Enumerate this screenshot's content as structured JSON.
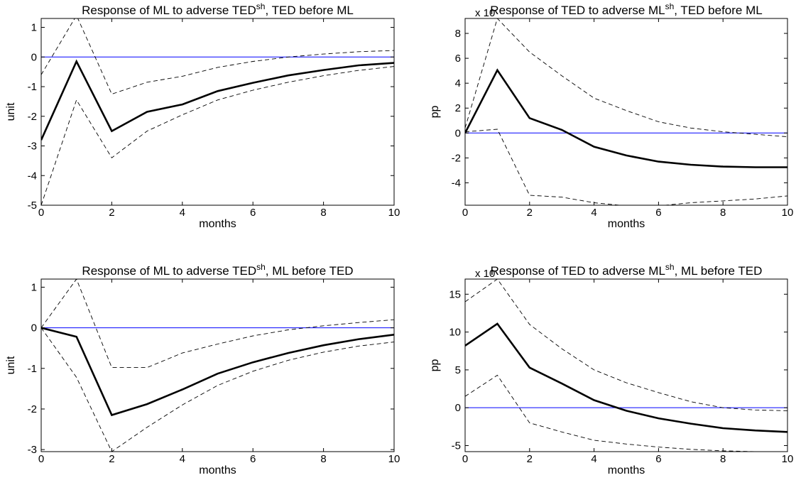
{
  "chart_data": [
    {
      "type": "line",
      "title": "Response of ML to adverse TED",
      "title_sup": "sh",
      "title_suffix": ", TED before ML",
      "xlabel": "months",
      "ylabel": "unit",
      "multiplier_label": "",
      "xlim": [
        0,
        10
      ],
      "ylim": [
        -5,
        1.3
      ],
      "xticks": [
        "0",
        "2",
        "4",
        "6",
        "8",
        "10"
      ],
      "yticks": [
        "-5",
        "-4",
        "-3",
        "-2",
        "-1",
        "0",
        "1"
      ],
      "x": [
        0,
        1,
        2,
        3,
        4,
        5,
        6,
        7,
        8,
        9,
        10
      ],
      "zero_line": 0,
      "series": [
        {
          "style": "solid-thick",
          "color": "#000000",
          "values": [
            -2.8,
            -0.15,
            -2.5,
            -1.85,
            -1.6,
            -1.15,
            -0.87,
            -0.62,
            -0.44,
            -0.28,
            -0.2
          ]
        },
        {
          "style": "dashed",
          "color": "#000000",
          "values": [
            -0.6,
            1.4,
            -1.25,
            -0.85,
            -0.65,
            -0.35,
            -0.15,
            0.0,
            0.1,
            0.18,
            0.22
          ]
        },
        {
          "style": "dashed",
          "color": "#000000",
          "values": [
            -5.0,
            -1.45,
            -3.4,
            -2.5,
            -1.95,
            -1.45,
            -1.12,
            -0.85,
            -0.63,
            -0.45,
            -0.32
          ]
        }
      ]
    },
    {
      "type": "line",
      "title": "Response of TED to adverse ML",
      "title_sup": "sh",
      "title_suffix": ", TED before ML",
      "xlabel": "months",
      "ylabel": "pp",
      "multiplier_label": "x 10",
      "xlim": [
        0,
        10
      ],
      "ylim": [
        -5.8,
        9.2
      ],
      "xticks": [
        "0",
        "2",
        "4",
        "6",
        "8",
        "10"
      ],
      "yticks": [
        "-4",
        "-2",
        "0",
        "2",
        "4",
        "6",
        "8"
      ],
      "x": [
        0,
        1,
        2,
        3,
        4,
        5,
        6,
        7,
        8,
        9,
        10
      ],
      "zero_line": 0,
      "series": [
        {
          "style": "solid-thick",
          "color": "#000000",
          "values": [
            0.0,
            5.05,
            1.2,
            0.25,
            -1.1,
            -1.8,
            -2.3,
            -2.55,
            -2.7,
            -2.75,
            -2.75
          ]
        },
        {
          "style": "dashed",
          "color": "#000000",
          "values": [
            0.4,
            9.2,
            6.5,
            4.6,
            2.8,
            1.8,
            0.9,
            0.4,
            0.1,
            -0.1,
            -0.3
          ]
        },
        {
          "style": "dashed",
          "color": "#000000",
          "values": [
            0.1,
            0.3,
            -5.0,
            -5.15,
            -5.6,
            -5.85,
            -5.85,
            -5.6,
            -5.45,
            -5.3,
            -5.05
          ]
        }
      ]
    },
    {
      "type": "line",
      "title": "Response of ML to adverse TED",
      "title_sup": "sh",
      "title_suffix": ", ML before TED",
      "xlabel": "months",
      "ylabel": "unit",
      "multiplier_label": "",
      "xlim": [
        0,
        10
      ],
      "ylim": [
        -3.05,
        1.2
      ],
      "xticks": [
        "0",
        "2",
        "4",
        "6",
        "8",
        "10"
      ],
      "yticks": [
        "-3",
        "-2",
        "-1",
        "0",
        "1"
      ],
      "x": [
        0,
        1,
        2,
        3,
        4,
        5,
        6,
        7,
        8,
        9,
        10
      ],
      "zero_line": 0,
      "series": [
        {
          "style": "solid-thick",
          "color": "#000000",
          "values": [
            0.0,
            -0.22,
            -2.15,
            -1.88,
            -1.52,
            -1.13,
            -0.85,
            -0.62,
            -0.43,
            -0.28,
            -0.17
          ]
        },
        {
          "style": "dashed",
          "color": "#000000",
          "values": [
            0.0,
            1.2,
            -0.98,
            -0.98,
            -0.62,
            -0.4,
            -0.2,
            -0.05,
            0.05,
            0.13,
            0.2
          ]
        },
        {
          "style": "dashed",
          "color": "#000000",
          "values": [
            0.0,
            -1.22,
            -3.05,
            -2.45,
            -1.9,
            -1.42,
            -1.07,
            -0.8,
            -0.6,
            -0.45,
            -0.35
          ]
        }
      ]
    },
    {
      "type": "line",
      "title": "Response of TED to adverse ML",
      "title_sup": "sh",
      "title_suffix": ", ML before TED",
      "xlabel": "months",
      "ylabel": "pp",
      "multiplier_label": "x 10",
      "xlim": [
        0,
        10
      ],
      "ylim": [
        -5.8,
        17
      ],
      "xticks": [
        "0",
        "2",
        "4",
        "6",
        "8",
        "10"
      ],
      "yticks": [
        "-5",
        "0",
        "5",
        "10",
        "15"
      ],
      "x": [
        0,
        1,
        2,
        3,
        4,
        5,
        6,
        7,
        8,
        9,
        10
      ],
      "zero_line": 0,
      "series": [
        {
          "style": "solid-thick",
          "color": "#000000",
          "values": [
            8.2,
            11.1,
            5.3,
            3.2,
            1.0,
            -0.4,
            -1.4,
            -2.1,
            -2.7,
            -3.0,
            -3.2
          ]
        },
        {
          "style": "dashed",
          "color": "#000000",
          "values": [
            14.0,
            17.0,
            11.0,
            7.8,
            5.0,
            3.3,
            2.0,
            0.8,
            0.0,
            -0.3,
            -0.4
          ]
        },
        {
          "style": "dashed",
          "color": "#000000",
          "values": [
            1.5,
            4.3,
            -2.0,
            -3.2,
            -4.3,
            -4.8,
            -5.2,
            -5.5,
            -5.7,
            -5.8,
            -5.8
          ]
        }
      ]
    }
  ],
  "colors": {
    "zero_line": "#0000ff",
    "axes": "#000000",
    "background": "#ffffff"
  }
}
